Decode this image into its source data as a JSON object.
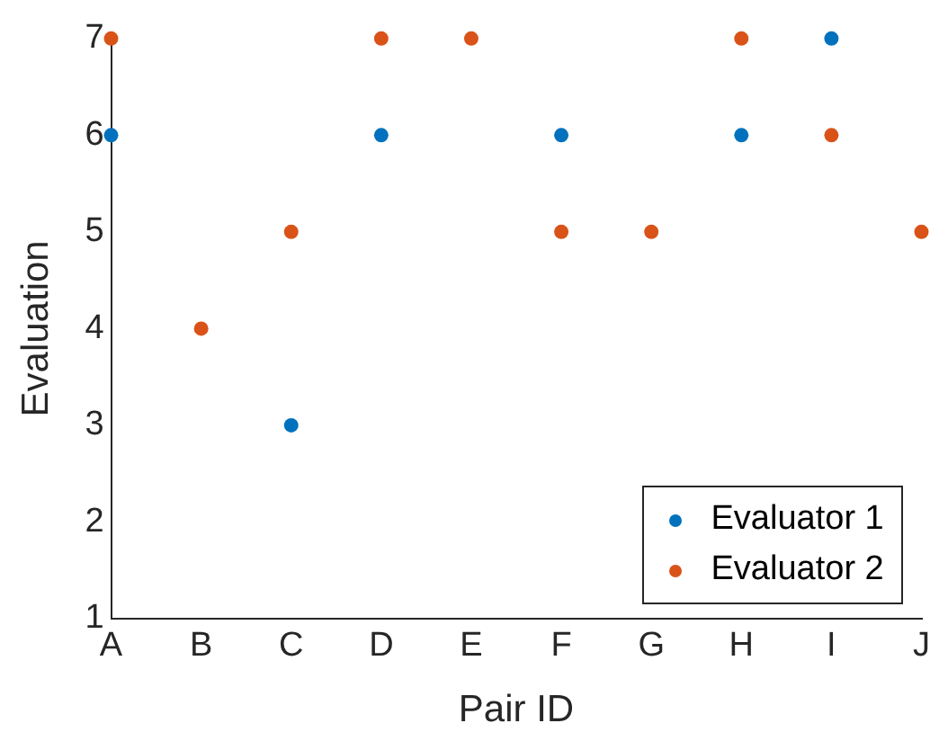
{
  "chart_data": {
    "type": "scatter",
    "xlabel": "Pair ID",
    "ylabel": "Evaluation",
    "categories": [
      "A",
      "B",
      "C",
      "D",
      "E",
      "F",
      "G",
      "H",
      "I",
      "J"
    ],
    "series": [
      {
        "name": "Evaluator 1",
        "color": "#0072bd",
        "values": [
          6,
          null,
          3,
          6,
          null,
          6,
          null,
          6,
          7,
          null
        ]
      },
      {
        "name": "Evaluator 2",
        "color": "#d95319",
        "values": [
          7,
          4,
          5,
          7,
          7,
          5,
          5,
          7,
          6,
          5
        ]
      }
    ],
    "ylim": [
      1,
      7
    ],
    "yticks": [
      1,
      2,
      3,
      4,
      5,
      6,
      7
    ],
    "grid": false,
    "legend": "bottom right",
    "marker": "circle"
  }
}
